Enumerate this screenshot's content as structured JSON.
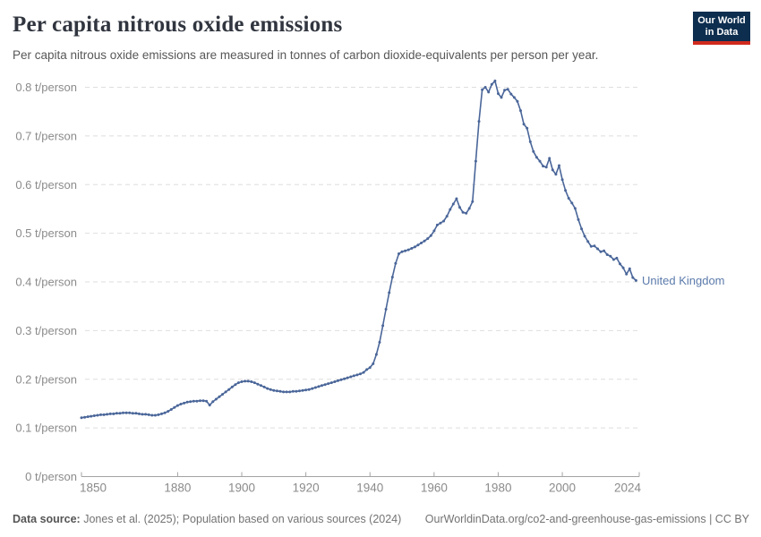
{
  "header": {
    "title": "Per capita nitrous oxide emissions",
    "subtitle": "Per capita nitrous oxide emissions are measured in tonnes of carbon dioxide-equivalents per person per year.",
    "logo_line1": "Our World",
    "logo_line2": "in Data",
    "logo_bg_color": "#0d2e4f",
    "logo_accent_color": "#d12a1e"
  },
  "chart_data": {
    "type": "line",
    "title": "Per capita nitrous oxide emissions",
    "unit": "t/person",
    "xlim": [
      1850,
      2024
    ],
    "ylim": [
      0,
      0.8
    ],
    "grid": true,
    "x_ticks": [
      1850,
      1880,
      1900,
      1920,
      1940,
      1960,
      1980,
      2000,
      2024
    ],
    "y_ticks": [
      {
        "value": 0,
        "label": "0 t/person"
      },
      {
        "value": 0.1,
        "label": "0.1 t/person"
      },
      {
        "value": 0.2,
        "label": "0.2 t/person"
      },
      {
        "value": 0.3,
        "label": "0.3 t/person"
      },
      {
        "value": 0.4,
        "label": "0.4 t/person"
      },
      {
        "value": 0.5,
        "label": "0.5 t/person"
      },
      {
        "value": 0.6,
        "label": "0.6 t/person"
      },
      {
        "value": 0.7,
        "label": "0.7 t/person"
      },
      {
        "value": 0.8,
        "label": "0.8 t/person"
      }
    ],
    "legend_position": "end-of-line-label",
    "series": [
      {
        "name": "United Kingdom",
        "color": "#4a6699",
        "points": [
          [
            1850,
            0.121
          ],
          [
            1851,
            0.122
          ],
          [
            1852,
            0.123
          ],
          [
            1853,
            0.124
          ],
          [
            1854,
            0.125
          ],
          [
            1855,
            0.126
          ],
          [
            1856,
            0.127
          ],
          [
            1857,
            0.127
          ],
          [
            1858,
            0.128
          ],
          [
            1859,
            0.129
          ],
          [
            1860,
            0.129
          ],
          [
            1861,
            0.13
          ],
          [
            1862,
            0.13
          ],
          [
            1863,
            0.131
          ],
          [
            1864,
            0.131
          ],
          [
            1865,
            0.131
          ],
          [
            1866,
            0.13
          ],
          [
            1867,
            0.13
          ],
          [
            1868,
            0.129
          ],
          [
            1869,
            0.128
          ],
          [
            1870,
            0.128
          ],
          [
            1871,
            0.127
          ],
          [
            1872,
            0.126
          ],
          [
            1873,
            0.126
          ],
          [
            1874,
            0.127
          ],
          [
            1875,
            0.129
          ],
          [
            1876,
            0.131
          ],
          [
            1877,
            0.134
          ],
          [
            1878,
            0.138
          ],
          [
            1879,
            0.142
          ],
          [
            1880,
            0.146
          ],
          [
            1881,
            0.149
          ],
          [
            1882,
            0.151
          ],
          [
            1883,
            0.153
          ],
          [
            1884,
            0.154
          ],
          [
            1885,
            0.155
          ],
          [
            1886,
            0.155
          ],
          [
            1887,
            0.156
          ],
          [
            1888,
            0.156
          ],
          [
            1889,
            0.155
          ],
          [
            1890,
            0.147
          ],
          [
            1891,
            0.154
          ],
          [
            1892,
            0.159
          ],
          [
            1893,
            0.164
          ],
          [
            1894,
            0.169
          ],
          [
            1895,
            0.174
          ],
          [
            1896,
            0.179
          ],
          [
            1897,
            0.184
          ],
          [
            1898,
            0.189
          ],
          [
            1899,
            0.193
          ],
          [
            1900,
            0.195
          ],
          [
            1901,
            0.196
          ],
          [
            1902,
            0.196
          ],
          [
            1903,
            0.195
          ],
          [
            1904,
            0.193
          ],
          [
            1905,
            0.19
          ],
          [
            1906,
            0.187
          ],
          [
            1907,
            0.184
          ],
          [
            1908,
            0.181
          ],
          [
            1909,
            0.179
          ],
          [
            1910,
            0.177
          ],
          [
            1911,
            0.176
          ],
          [
            1912,
            0.175
          ],
          [
            1913,
            0.174
          ],
          [
            1914,
            0.174
          ],
          [
            1915,
            0.174
          ],
          [
            1916,
            0.175
          ],
          [
            1917,
            0.175
          ],
          [
            1918,
            0.176
          ],
          [
            1919,
            0.177
          ],
          [
            1920,
            0.178
          ],
          [
            1921,
            0.179
          ],
          [
            1922,
            0.181
          ],
          [
            1923,
            0.183
          ],
          [
            1924,
            0.185
          ],
          [
            1925,
            0.187
          ],
          [
            1926,
            0.189
          ],
          [
            1927,
            0.191
          ],
          [
            1928,
            0.193
          ],
          [
            1929,
            0.195
          ],
          [
            1930,
            0.197
          ],
          [
            1931,
            0.199
          ],
          [
            1932,
            0.201
          ],
          [
            1933,
            0.203
          ],
          [
            1934,
            0.205
          ],
          [
            1935,
            0.207
          ],
          [
            1936,
            0.209
          ],
          [
            1937,
            0.211
          ],
          [
            1938,
            0.214
          ],
          [
            1939,
            0.22
          ],
          [
            1940,
            0.224
          ],
          [
            1941,
            0.232
          ],
          [
            1942,
            0.251
          ],
          [
            1943,
            0.276
          ],
          [
            1944,
            0.31
          ],
          [
            1945,
            0.344
          ],
          [
            1946,
            0.378
          ],
          [
            1947,
            0.41
          ],
          [
            1948,
            0.438
          ],
          [
            1949,
            0.458
          ],
          [
            1950,
            0.462
          ],
          [
            1951,
            0.464
          ],
          [
            1952,
            0.466
          ],
          [
            1953,
            0.469
          ],
          [
            1954,
            0.472
          ],
          [
            1955,
            0.476
          ],
          [
            1956,
            0.48
          ],
          [
            1957,
            0.484
          ],
          [
            1958,
            0.489
          ],
          [
            1959,
            0.495
          ],
          [
            1960,
            0.505
          ],
          [
            1961,
            0.517
          ],
          [
            1962,
            0.521
          ],
          [
            1963,
            0.525
          ],
          [
            1964,
            0.535
          ],
          [
            1965,
            0.549
          ],
          [
            1966,
            0.56
          ],
          [
            1967,
            0.571
          ],
          [
            1968,
            0.553
          ],
          [
            1969,
            0.543
          ],
          [
            1970,
            0.541
          ],
          [
            1971,
            0.551
          ],
          [
            1972,
            0.565
          ],
          [
            1973,
            0.648
          ],
          [
            1974,
            0.73
          ],
          [
            1975,
            0.795
          ],
          [
            1976,
            0.8
          ],
          [
            1977,
            0.79
          ],
          [
            1978,
            0.806
          ],
          [
            1979,
            0.813
          ],
          [
            1980,
            0.787
          ],
          [
            1981,
            0.779
          ],
          [
            1982,
            0.794
          ],
          [
            1983,
            0.796
          ],
          [
            1984,
            0.786
          ],
          [
            1985,
            0.779
          ],
          [
            1986,
            0.771
          ],
          [
            1987,
            0.752
          ],
          [
            1988,
            0.724
          ],
          [
            1989,
            0.716
          ],
          [
            1990,
            0.688
          ],
          [
            1991,
            0.668
          ],
          [
            1992,
            0.656
          ],
          [
            1993,
            0.648
          ],
          [
            1994,
            0.638
          ],
          [
            1995,
            0.636
          ],
          [
            1996,
            0.654
          ],
          [
            1997,
            0.63
          ],
          [
            1998,
            0.621
          ],
          [
            1999,
            0.639
          ],
          [
            2000,
            0.61
          ],
          [
            2001,
            0.588
          ],
          [
            2002,
            0.572
          ],
          [
            2003,
            0.562
          ],
          [
            2004,
            0.551
          ],
          [
            2005,
            0.528
          ],
          [
            2006,
            0.509
          ],
          [
            2007,
            0.494
          ],
          [
            2008,
            0.483
          ],
          [
            2009,
            0.473
          ],
          [
            2010,
            0.474
          ],
          [
            2011,
            0.468
          ],
          [
            2012,
            0.462
          ],
          [
            2013,
            0.464
          ],
          [
            2014,
            0.456
          ],
          [
            2015,
            0.453
          ],
          [
            2016,
            0.446
          ],
          [
            2017,
            0.449
          ],
          [
            2018,
            0.437
          ],
          [
            2019,
            0.429
          ],
          [
            2020,
            0.416
          ],
          [
            2021,
            0.427
          ],
          [
            2022,
            0.409
          ],
          [
            2023,
            0.403
          ]
        ]
      }
    ]
  },
  "footer": {
    "datasource_label": "Data source:",
    "datasource_text": "Jones et al. (2025); Population based on various sources (2024)",
    "note": "OurWorldinData.org/co2-and-greenhouse-gas-emissions | CC BY"
  }
}
